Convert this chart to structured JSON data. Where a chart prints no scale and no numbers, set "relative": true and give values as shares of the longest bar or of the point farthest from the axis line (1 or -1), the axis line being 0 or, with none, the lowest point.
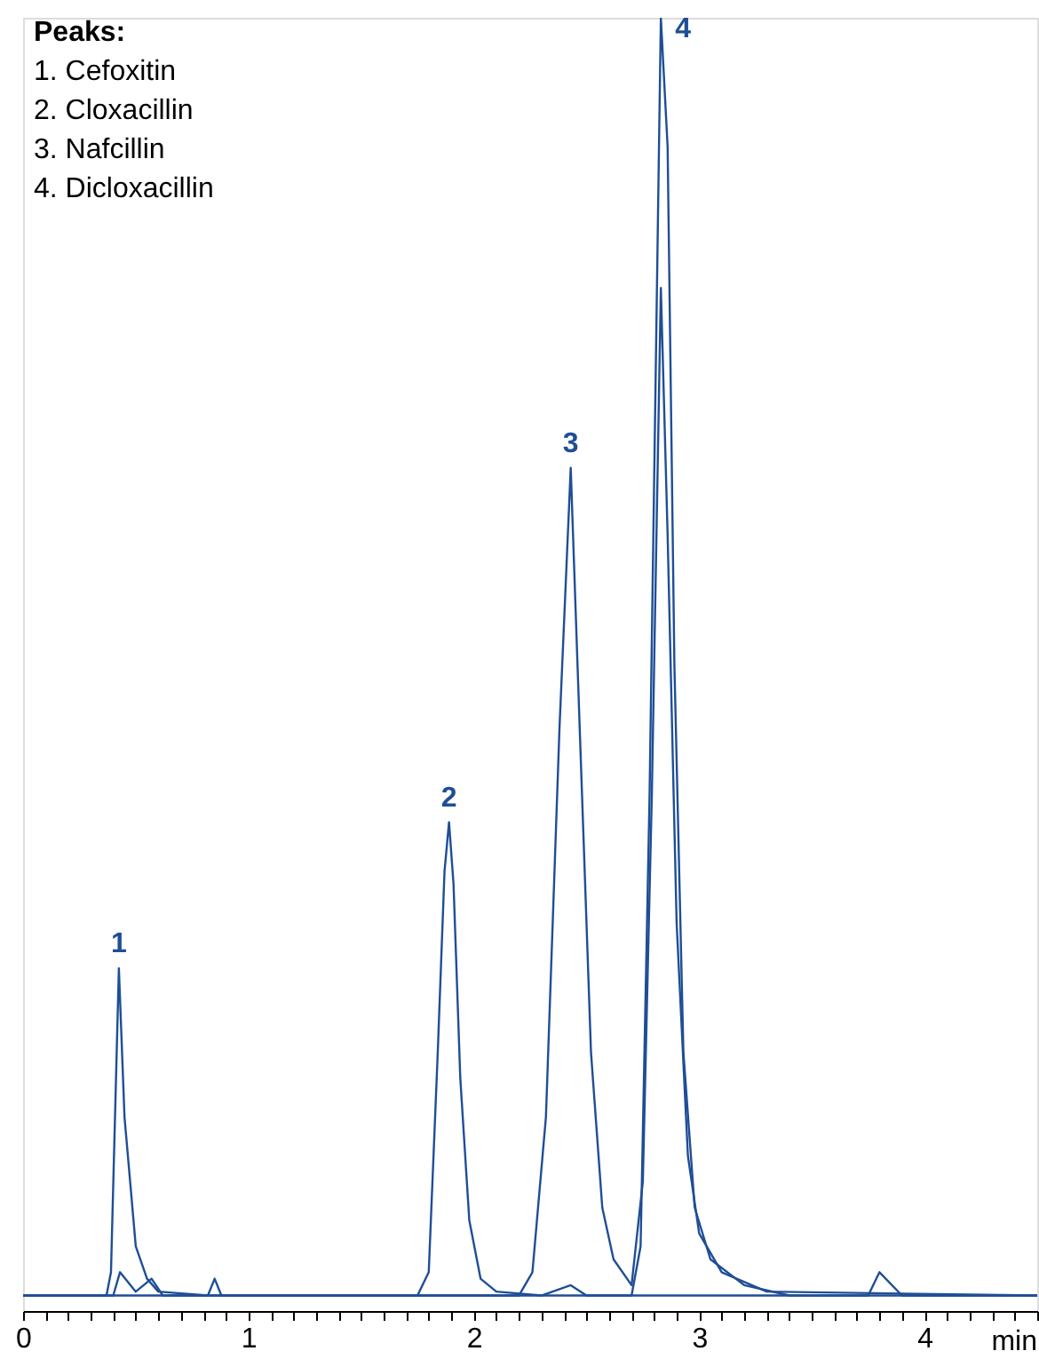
{
  "chart_data": {
    "type": "line",
    "relative": true,
    "title": "Peaks:",
    "xlabel": "min",
    "annotations": [
      "1. Cefoxitin",
      "2. Cloxacillin",
      "3. Nafcillin",
      "4. Dicloxacillin",
      {
        "text": "1",
        "x": 0.425,
        "y": 0.265
      },
      {
        "text": "2",
        "x": 1.89,
        "y": 0.378
      },
      {
        "text": "3",
        "x": 2.43,
        "y": 0.652
      },
      {
        "text": "4",
        "x": 2.83,
        "y": 1.0
      }
    ],
    "xlim": [
      0,
      4.5
    ],
    "xticks": [
      0,
      {
        "value": 0.1,
        "label": null
      },
      {
        "value": 0.2,
        "label": null
      },
      {
        "value": 0.3,
        "label": null
      },
      {
        "value": 0.4,
        "label": null
      },
      {
        "value": 0.5,
        "label": null
      },
      {
        "value": 0.6,
        "label": null
      },
      {
        "value": 0.7,
        "label": null
      },
      {
        "value": 0.8,
        "label": null
      },
      {
        "value": 0.9,
        "label": null
      },
      1,
      {
        "value": 1.1,
        "label": null
      },
      {
        "value": 1.2,
        "label": null
      },
      {
        "value": 1.3,
        "label": null
      },
      {
        "value": 1.4,
        "label": null
      },
      {
        "value": 1.5,
        "label": null
      },
      {
        "value": 1.6,
        "label": null
      },
      {
        "value": 1.7,
        "label": null
      },
      {
        "value": 1.8,
        "label": null
      },
      {
        "value": 1.9,
        "label": null
      },
      2,
      {
        "value": 2.1,
        "label": null
      },
      {
        "value": 2.2,
        "label": null
      },
      {
        "value": 2.3,
        "label": null
      },
      {
        "value": 2.4,
        "label": null
      },
      {
        "value": 2.5,
        "label": null
      },
      {
        "value": 2.6,
        "label": null
      },
      {
        "value": 2.7,
        "label": null
      },
      {
        "value": 2.8,
        "label": null
      },
      {
        "value": 2.9,
        "label": null
      },
      3,
      {
        "value": 3.1,
        "label": null
      },
      {
        "value": 3.2,
        "label": null
      },
      {
        "value": 3.3,
        "label": null
      },
      {
        "value": 3.4,
        "label": null
      },
      {
        "value": 3.5,
        "label": null
      },
      {
        "value": 3.6,
        "label": null
      },
      {
        "value": 3.7,
        "label": null
      },
      {
        "value": 3.8,
        "label": null
      },
      {
        "value": 3.9,
        "label": null
      },
      4,
      {
        "value": 4.1,
        "label": null
      },
      {
        "value": 4.2,
        "label": null
      },
      {
        "value": 4.3,
        "label": null
      },
      {
        "value": 4.4,
        "label": null
      },
      {
        "value": 4.5,
        "label": null
      }
    ],
    "tick_labels": "x",
    "grid": false,
    "marker": "none",
    "line_style": "solid",
    "series": [
      {
        "color": "#1f4e96",
        "x": [
          0,
          0.37,
          0.39,
          0.425,
          0.45,
          0.5,
          0.55,
          0.6,
          0.82,
          0.85,
          0.88,
          2.7,
          2.74,
          2.78,
          2.83,
          2.86,
          2.89,
          2.93,
          2.98,
          3.05,
          3.2,
          3.4,
          4.5
        ],
        "values": [
          0.012,
          0.012,
          0.03,
          0.265,
          0.15,
          0.05,
          0.025,
          0.015,
          0.012,
          0.025,
          0.012,
          0.012,
          0.05,
          0.4,
          1.0,
          0.9,
          0.5,
          0.2,
          0.08,
          0.04,
          0.02,
          0.012,
          0.012
        ]
      },
      {
        "color": "#1f4e96",
        "x": [
          0,
          1.75,
          1.8,
          1.84,
          1.87,
          1.89,
          1.91,
          1.94,
          1.98,
          2.03,
          2.1,
          2.3,
          2.43,
          2.5,
          3.75,
          3.8,
          3.9,
          4.5
        ],
        "values": [
          0.012,
          0.012,
          0.03,
          0.2,
          0.34,
          0.378,
          0.33,
          0.18,
          0.07,
          0.025,
          0.015,
          0.012,
          0.02,
          0.012,
          0.012,
          0.03,
          0.012,
          0.012
        ]
      },
      {
        "color": "#1f4e96",
        "x": [
          0,
          0.4,
          0.43,
          0.5,
          0.57,
          0.62,
          2.2,
          2.26,
          2.32,
          2.38,
          2.43,
          2.47,
          2.52,
          2.57,
          2.62,
          2.7,
          2.75,
          2.79,
          2.83,
          2.86,
          2.9,
          2.95,
          3.0,
          3.1,
          3.3,
          4.5
        ],
        "values": [
          0.012,
          0.012,
          0.03,
          0.015,
          0.025,
          0.012,
          0.012,
          0.03,
          0.15,
          0.45,
          0.652,
          0.45,
          0.2,
          0.08,
          0.04,
          0.02,
          0.1,
          0.4,
          0.791,
          0.6,
          0.3,
          0.12,
          0.06,
          0.03,
          0.015,
          0.012
        ]
      }
    ]
  }
}
